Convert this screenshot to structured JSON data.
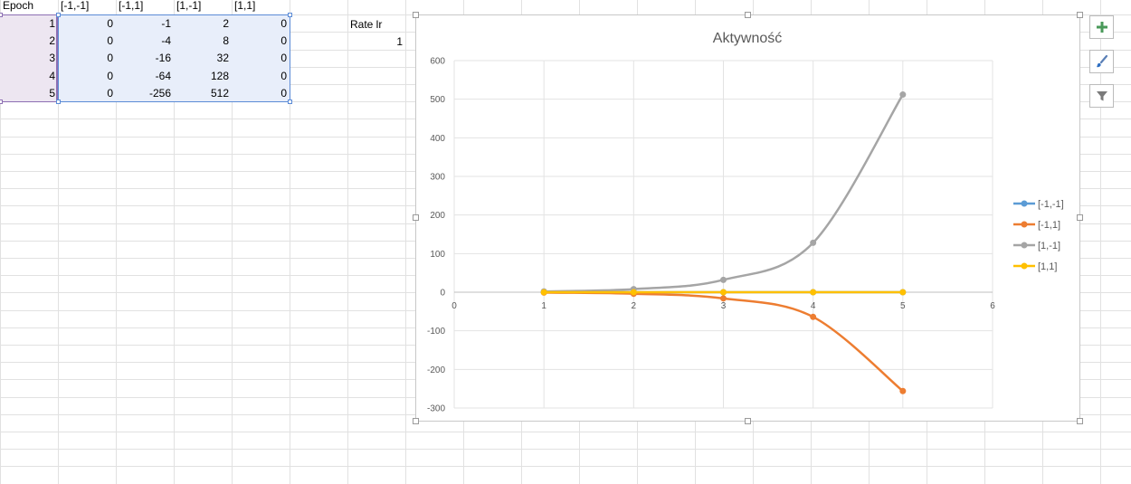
{
  "sheet": {
    "headers": [
      "Epoch",
      "[-1,-1]",
      "[-1,1]",
      "[1,-1]",
      "[1,1]"
    ],
    "rows": [
      [
        "1",
        "0",
        "-1",
        "2",
        "0"
      ],
      [
        "2",
        "0",
        "-4",
        "8",
        "0"
      ],
      [
        "3",
        "0",
        "-16",
        "32",
        "0"
      ],
      [
        "4",
        "0",
        "-64",
        "128",
        "0"
      ],
      [
        "5",
        "0",
        "-256",
        "512",
        "0"
      ]
    ],
    "rate_label": "Rate lr",
    "rate_value": "1"
  },
  "chart_data": {
    "type": "line",
    "title": "Aktywność",
    "x": [
      1,
      2,
      3,
      4,
      5
    ],
    "xlim": [
      0,
      6
    ],
    "ylim": [
      -300,
      600
    ],
    "x_ticks": [
      "0",
      "1",
      "2",
      "3",
      "4",
      "5",
      "6"
    ],
    "y_ticks": [
      "600",
      "500",
      "400",
      "300",
      "200",
      "100",
      "0",
      "-100",
      "-200",
      "-300"
    ],
    "grid": true,
    "legend_position": "right",
    "series": [
      {
        "name": "[-1,-1]",
        "color": "#5b9bd5",
        "values": [
          0,
          0,
          0,
          0,
          0
        ]
      },
      {
        "name": "[-1,1]",
        "color": "#ed7d31",
        "values": [
          -1,
          -4,
          -16,
          -64,
          -256
        ]
      },
      {
        "name": "[1,-1]",
        "color": "#a5a5a5",
        "values": [
          2,
          8,
          32,
          128,
          512
        ]
      },
      {
        "name": "[1,1]",
        "color": "#ffc000",
        "values": [
          0,
          0,
          0,
          0,
          0
        ]
      }
    ]
  },
  "chart_tools": {
    "add_icon": "plus-icon",
    "style_icon": "brush-icon",
    "filter_icon": "filter-icon"
  }
}
